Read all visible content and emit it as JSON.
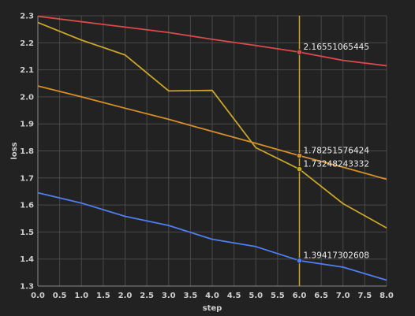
{
  "chart_data": {
    "type": "line",
    "xlabel": "step",
    "ylabel": "loss",
    "xlim": [
      0,
      8
    ],
    "ylim": [
      1.3,
      2.3
    ],
    "x_ticks": [
      "0.0",
      "0.5",
      "1.0",
      "1.5",
      "2.0",
      "2.5",
      "3.0",
      "3.5",
      "4.0",
      "4.5",
      "5.0",
      "5.5",
      "6.0",
      "6.5",
      "7.0",
      "7.5",
      "8.0"
    ],
    "y_ticks": [
      "1.3",
      "1.4",
      "1.5",
      "1.6",
      "1.7",
      "1.8",
      "1.9",
      "2.0",
      "2.1",
      "2.2",
      "2.3"
    ],
    "grid": true,
    "hover_x": 6,
    "series": [
      {
        "color": "#d94a4a",
        "x": [
          0,
          1,
          2,
          3,
          4,
          5,
          6,
          7,
          8
        ],
        "values": [
          2.298,
          2.278,
          2.258,
          2.238,
          2.213,
          2.19,
          2.1655,
          2.135,
          2.115
        ]
      },
      {
        "color": "#c9a629",
        "x": [
          0,
          1,
          2,
          3,
          4,
          5,
          6,
          7,
          8
        ],
        "values": [
          2.275,
          2.21,
          2.155,
          2.022,
          2.024,
          1.812,
          1.7325,
          1.605,
          1.515
        ]
      },
      {
        "color": "#d48f2a",
        "x": [
          0,
          1,
          2,
          3,
          4,
          5,
          6,
          7,
          8
        ],
        "values": [
          2.04,
          2.0,
          1.958,
          1.917,
          1.872,
          1.828,
          1.7825,
          1.74,
          1.695
        ]
      },
      {
        "color": "#4f7ef0",
        "x": [
          0,
          1,
          2,
          3,
          4,
          5,
          6,
          7,
          8
        ],
        "values": [
          1.645,
          1.607,
          1.558,
          1.524,
          1.473,
          1.446,
          1.3942,
          1.37,
          1.322
        ]
      }
    ],
    "hover_labels": [
      {
        "series": 0,
        "text": "2.16551065445"
      },
      {
        "series": 2,
        "text": "1.78251576424"
      },
      {
        "series": 1,
        "text": "1.73248243332"
      },
      {
        "series": 3,
        "text": "1.39417302608"
      }
    ]
  }
}
